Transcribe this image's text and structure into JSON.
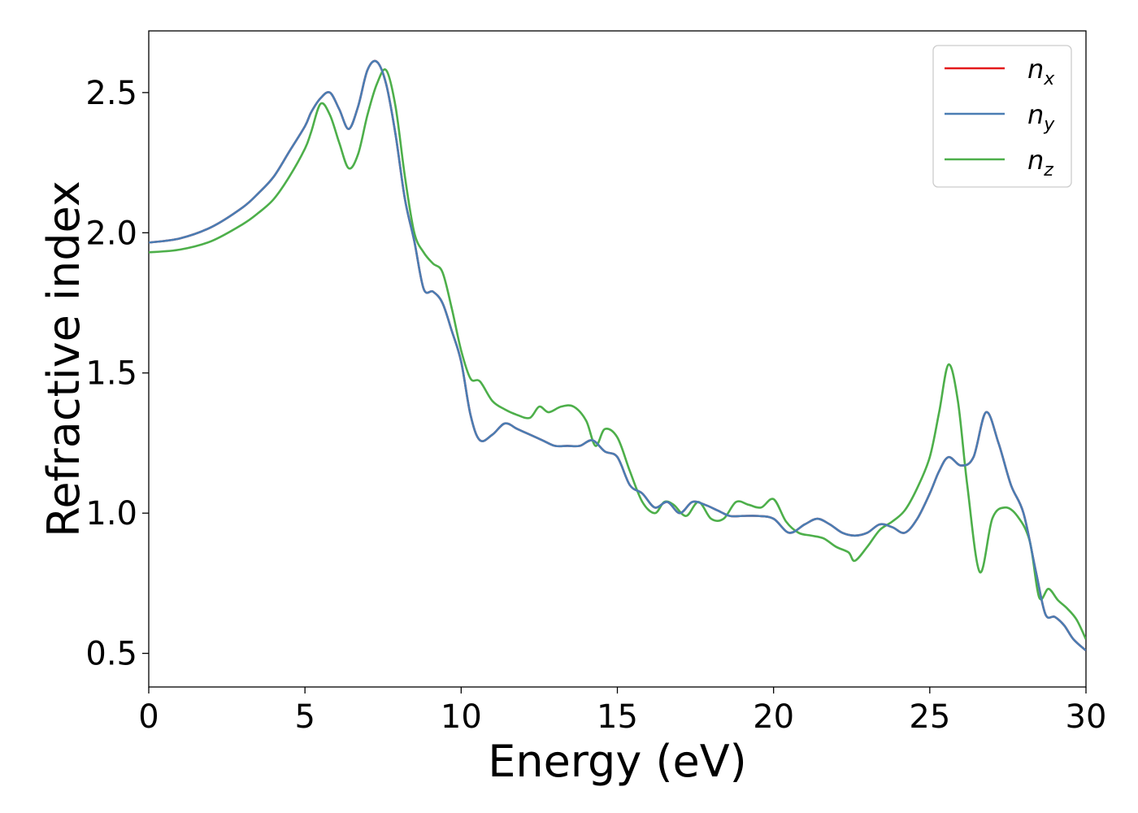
{
  "chart_data": {
    "type": "line",
    "title": "",
    "xlabel": "Energy (eV)",
    "ylabel": "Refractive index",
    "xlim": [
      0,
      30
    ],
    "ylim": [
      0.38,
      2.72
    ],
    "xticks": [
      0,
      5,
      10,
      15,
      20,
      25,
      30
    ],
    "xtick_labels": [
      "0",
      "5",
      "10",
      "15",
      "20",
      "25",
      "30"
    ],
    "yticks": [
      0.5,
      1.0,
      1.5,
      2.0,
      2.5
    ],
    "ytick_labels": [
      "0.5",
      "1.0",
      "1.5",
      "2.0",
      "2.5"
    ],
    "grid": false,
    "legend_position": "top-right",
    "series": [
      {
        "name": "n_x",
        "label_base": "n",
        "label_sub": "x",
        "color": "#e41a1c",
        "x": [
          0,
          1,
          2,
          3,
          3.5,
          4,
          4.5,
          5,
          5.2,
          5.5,
          5.8,
          6.1,
          6.4,
          6.7,
          7.0,
          7.3,
          7.6,
          7.9,
          8.2,
          8.5,
          8.8,
          9.1,
          9.4,
          9.7,
          10.0,
          10.3,
          10.6,
          11.0,
          11.4,
          11.8,
          12.2,
          12.6,
          13.0,
          13.4,
          13.8,
          14.2,
          14.6,
          15.0,
          15.4,
          15.8,
          16.2,
          16.6,
          17.0,
          17.4,
          17.8,
          18.2,
          18.6,
          19.0,
          19.5,
          20.0,
          20.5,
          21.0,
          21.4,
          21.8,
          22.2,
          22.6,
          23.0,
          23.4,
          23.8,
          24.2,
          24.6,
          25.0,
          25.3,
          25.6,
          26.0,
          26.4,
          26.8,
          27.2,
          27.6,
          28.0,
          28.4,
          28.7,
          29.0,
          29.3,
          29.6,
          30.0
        ],
        "y": [
          1.965,
          1.98,
          2.02,
          2.09,
          2.14,
          2.2,
          2.29,
          2.38,
          2.43,
          2.48,
          2.5,
          2.44,
          2.37,
          2.45,
          2.58,
          2.61,
          2.53,
          2.35,
          2.12,
          1.97,
          1.8,
          1.79,
          1.75,
          1.65,
          1.54,
          1.35,
          1.26,
          1.28,
          1.32,
          1.3,
          1.28,
          1.26,
          1.24,
          1.24,
          1.24,
          1.26,
          1.22,
          1.2,
          1.1,
          1.07,
          1.02,
          1.04,
          1.0,
          1.04,
          1.03,
          1.01,
          0.99,
          0.99,
          0.99,
          0.98,
          0.93,
          0.96,
          0.98,
          0.96,
          0.93,
          0.92,
          0.93,
          0.96,
          0.95,
          0.93,
          0.98,
          1.07,
          1.15,
          1.2,
          1.17,
          1.2,
          1.36,
          1.25,
          1.1,
          1.0,
          0.79,
          0.64,
          0.63,
          0.6,
          0.55,
          0.51
        ]
      },
      {
        "name": "n_y",
        "label_base": "n",
        "label_sub": "y",
        "color": "#4a7db3",
        "x": [
          0,
          1,
          2,
          3,
          3.5,
          4,
          4.5,
          5,
          5.2,
          5.5,
          5.8,
          6.1,
          6.4,
          6.7,
          7.0,
          7.3,
          7.6,
          7.9,
          8.2,
          8.5,
          8.8,
          9.1,
          9.4,
          9.7,
          10.0,
          10.3,
          10.6,
          11.0,
          11.4,
          11.8,
          12.2,
          12.6,
          13.0,
          13.4,
          13.8,
          14.2,
          14.6,
          15.0,
          15.4,
          15.8,
          16.2,
          16.6,
          17.0,
          17.4,
          17.8,
          18.2,
          18.6,
          19.0,
          19.5,
          20.0,
          20.5,
          21.0,
          21.4,
          21.8,
          22.2,
          22.6,
          23.0,
          23.4,
          23.8,
          24.2,
          24.6,
          25.0,
          25.3,
          25.6,
          26.0,
          26.4,
          26.8,
          27.2,
          27.6,
          28.0,
          28.4,
          28.7,
          29.0,
          29.3,
          29.6,
          30.0
        ],
        "y": [
          1.965,
          1.98,
          2.02,
          2.09,
          2.14,
          2.2,
          2.29,
          2.38,
          2.43,
          2.48,
          2.5,
          2.44,
          2.37,
          2.45,
          2.58,
          2.61,
          2.53,
          2.35,
          2.12,
          1.97,
          1.8,
          1.79,
          1.75,
          1.65,
          1.54,
          1.35,
          1.26,
          1.28,
          1.32,
          1.3,
          1.28,
          1.26,
          1.24,
          1.24,
          1.24,
          1.26,
          1.22,
          1.2,
          1.1,
          1.07,
          1.02,
          1.04,
          1.0,
          1.04,
          1.03,
          1.01,
          0.99,
          0.99,
          0.99,
          0.98,
          0.93,
          0.96,
          0.98,
          0.96,
          0.93,
          0.92,
          0.93,
          0.96,
          0.95,
          0.93,
          0.98,
          1.07,
          1.15,
          1.2,
          1.17,
          1.2,
          1.36,
          1.25,
          1.1,
          1.0,
          0.79,
          0.64,
          0.63,
          0.6,
          0.55,
          0.51
        ]
      },
      {
        "name": "n_z",
        "label_base": "n",
        "label_sub": "z",
        "color": "#4daf4a",
        "x": [
          0,
          1,
          2,
          3,
          3.5,
          4,
          4.5,
          5,
          5.2,
          5.5,
          5.8,
          6.1,
          6.4,
          6.7,
          7.0,
          7.3,
          7.6,
          7.9,
          8.2,
          8.5,
          8.8,
          9.1,
          9.4,
          9.7,
          10.0,
          10.3,
          10.6,
          11.0,
          11.4,
          11.8,
          12.2,
          12.5,
          12.8,
          13.2,
          13.6,
          14.0,
          14.3,
          14.6,
          15.0,
          15.4,
          15.8,
          16.2,
          16.5,
          16.8,
          17.2,
          17.6,
          18.0,
          18.4,
          18.8,
          19.2,
          19.6,
          20.0,
          20.4,
          20.8,
          21.2,
          21.6,
          22.0,
          22.4,
          22.6,
          23.0,
          23.4,
          23.8,
          24.2,
          24.6,
          25.0,
          25.3,
          25.6,
          25.9,
          26.2,
          26.6,
          27.0,
          27.4,
          27.8,
          28.2,
          28.5,
          28.8,
          29.1,
          29.4,
          29.7,
          30.0
        ],
        "y": [
          1.93,
          1.94,
          1.97,
          2.03,
          2.07,
          2.12,
          2.2,
          2.3,
          2.36,
          2.46,
          2.42,
          2.32,
          2.23,
          2.28,
          2.42,
          2.53,
          2.58,
          2.45,
          2.2,
          2.0,
          1.93,
          1.89,
          1.86,
          1.73,
          1.58,
          1.48,
          1.47,
          1.4,
          1.37,
          1.35,
          1.34,
          1.38,
          1.36,
          1.38,
          1.38,
          1.33,
          1.24,
          1.3,
          1.27,
          1.15,
          1.04,
          1.0,
          1.04,
          1.03,
          0.99,
          1.04,
          0.98,
          0.98,
          1.04,
          1.03,
          1.02,
          1.05,
          0.97,
          0.93,
          0.92,
          0.91,
          0.88,
          0.86,
          0.83,
          0.88,
          0.94,
          0.97,
          1.01,
          1.09,
          1.2,
          1.36,
          1.53,
          1.4,
          1.1,
          0.79,
          0.98,
          1.02,
          0.99,
          0.9,
          0.7,
          0.73,
          0.69,
          0.66,
          0.62,
          0.55
        ]
      }
    ]
  }
}
